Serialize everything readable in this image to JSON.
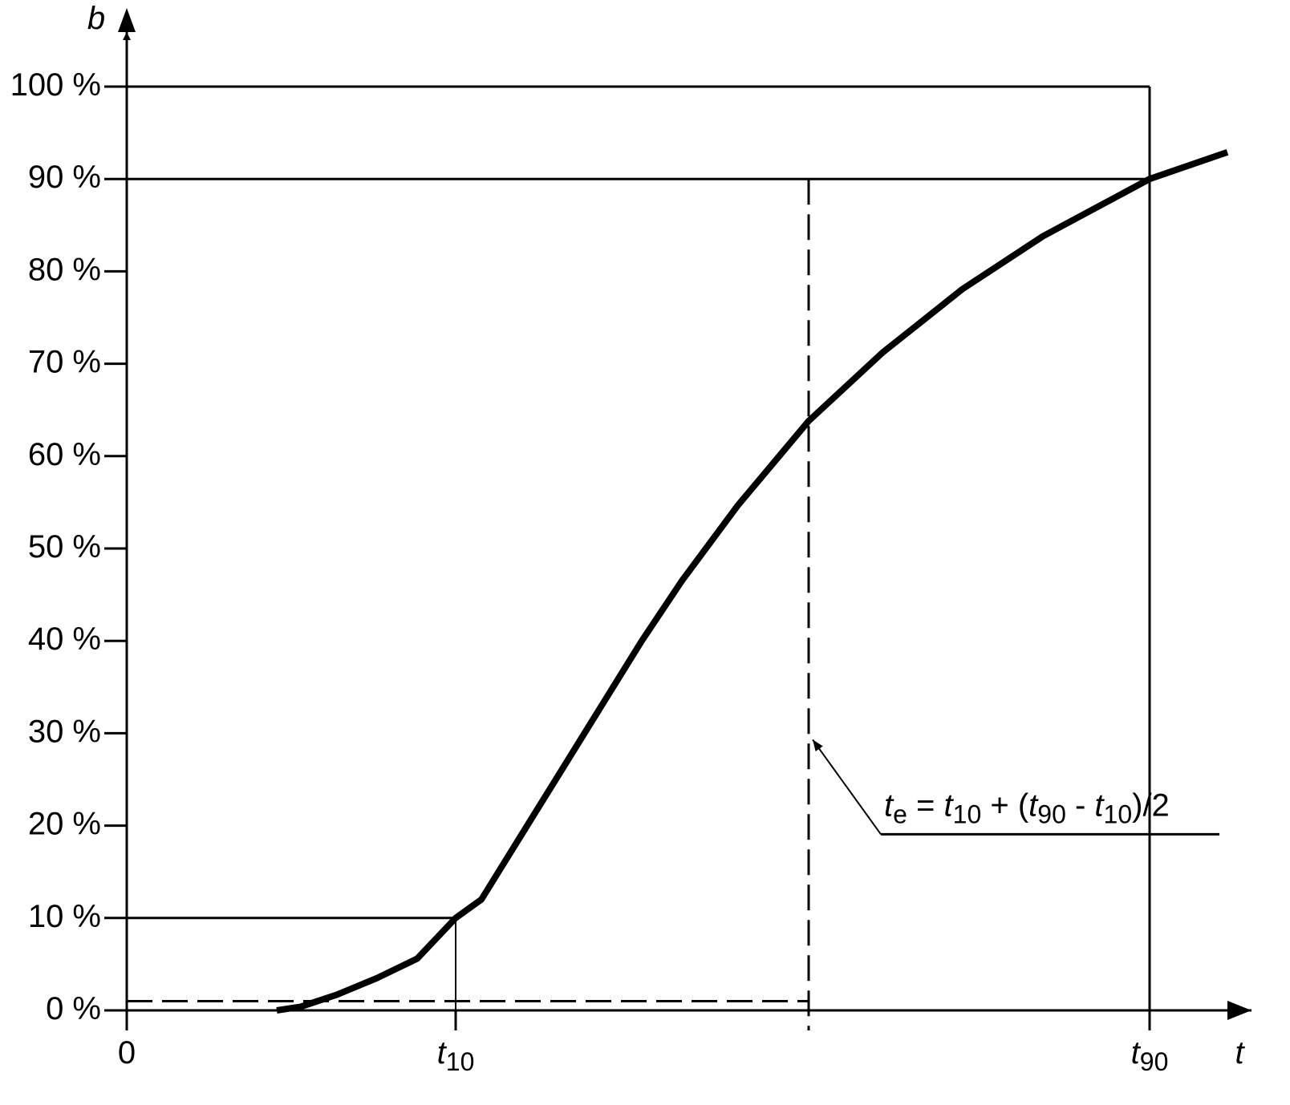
{
  "chart_data": {
    "type": "line",
    "x": [
      1.87,
      2.17,
      2.62,
      3.12,
      3.62,
      4.1,
      4.42,
      4.92,
      5.42,
      5.92,
      6.42,
      6.92,
      7.62,
      8.5,
      9.42,
      10.42,
      11.42,
      12.75,
      13.72
    ],
    "values": [
      0,
      0.4,
      1.7,
      3.5,
      5.6,
      10,
      12,
      19,
      26,
      33,
      40,
      46.5,
      54.7,
      63.8,
      71.2,
      78.1,
      83.8,
      90,
      92.9
    ],
    "color": "#000000",
    "x_label": "t",
    "y_label": "b",
    "xlim": [
      0,
      13.9
    ],
    "ylim": [
      0,
      100
    ],
    "xticks": [
      {
        "value": 0,
        "label": "0"
      },
      {
        "value": 4.1,
        "label": "t10"
      },
      {
        "value": 12.75,
        "label": "t90"
      }
    ],
    "yticks": [
      {
        "value": 0,
        "label": "0 %"
      },
      {
        "value": 10,
        "label": "10 %"
      },
      {
        "value": 20,
        "label": "20 %"
      },
      {
        "value": 30,
        "label": "30 %"
      },
      {
        "value": 40,
        "label": "40 %"
      },
      {
        "value": 50,
        "label": "50 %"
      },
      {
        "value": 60,
        "label": "60 %"
      },
      {
        "value": 70,
        "label": "70 %"
      },
      {
        "value": 80,
        "label": "80 %"
      },
      {
        "value": 90,
        "label": "90 %"
      },
      {
        "value": 100,
        "label": "100 %"
      }
    ],
    "dashed_level": 1,
    "annotation": {
      "text": "te = t10 + (t90 - t10)/2",
      "x": 8.5,
      "y": 30
    }
  }
}
